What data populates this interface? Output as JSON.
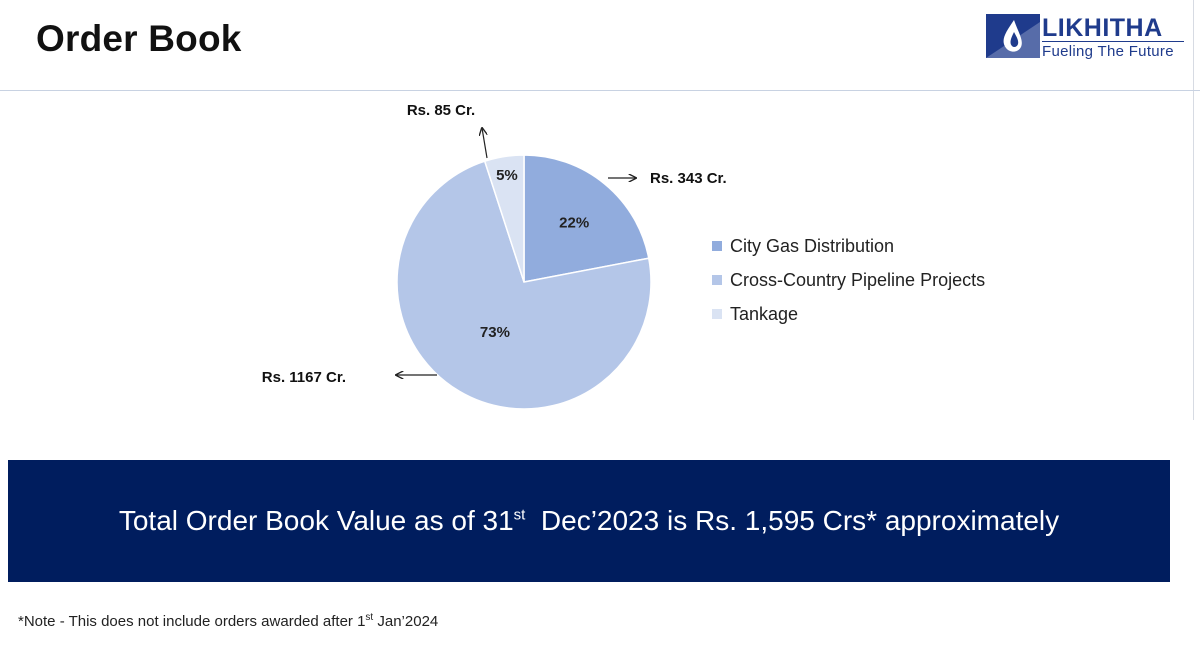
{
  "title": "Order Book",
  "logo": {
    "name": "LIKHITHA",
    "tagline": "Fueling The Future",
    "colors": {
      "primary": "#1f3b8c"
    }
  },
  "chart_data": {
    "type": "pie",
    "title": "",
    "start_angle_deg": 0,
    "direction": "clockwise",
    "slices": [
      {
        "name": "City Gas Distribution",
        "percent": 22,
        "percent_label": "22%",
        "value_label": "Rs. 343 Cr.",
        "color": "#91acdd"
      },
      {
        "name": "Cross-Country Pipeline Projects",
        "percent": 73,
        "percent_label": "73%",
        "value_label": "Rs. 1167 Cr.",
        "color": "#b4c6e8"
      },
      {
        "name": "Tankage",
        "percent": 5,
        "percent_label": "5%",
        "value_label": "Rs. 85 Cr.",
        "color": "#dae3f3"
      }
    ],
    "legend_position": "right"
  },
  "banner": {
    "text_before": "Total Order Book Value as of 31",
    "sup": "st",
    "text_after": "  Dec’2023 is Rs. 1,595 Crs* approximately",
    "background": "#001d5e"
  },
  "footnote": {
    "text_before": "*Note - This does not include orders awarded after 1",
    "sup": "st",
    "text_after": " Jan’2024"
  }
}
